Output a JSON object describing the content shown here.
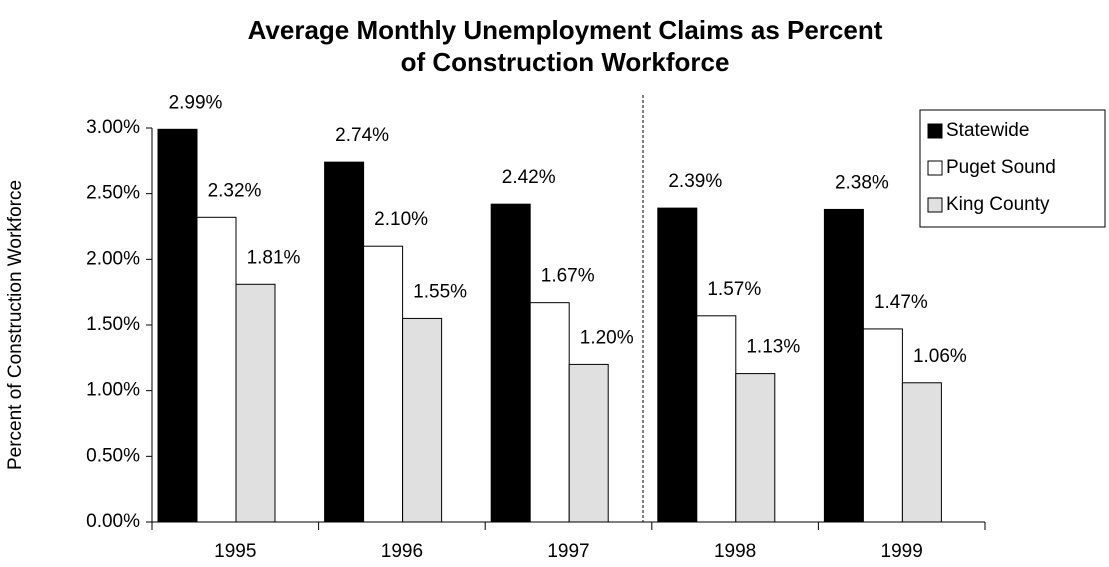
{
  "chart_data": {
    "type": "bar",
    "title": [
      "Average Monthly Unemployment Claims as Percent",
      "of Construction Workforce"
    ],
    "ylabel": "Percent of Construction Workforce",
    "categories": [
      "1995",
      "1996",
      "1997",
      "1998",
      "1999"
    ],
    "series": [
      {
        "name": "Statewide",
        "color": "#000000",
        "values": [
          2.99,
          2.74,
          2.42,
          2.39,
          2.38
        ],
        "value_labels": [
          "2.99%",
          "2.74%",
          "2.42%",
          "2.39%",
          "2.38%"
        ]
      },
      {
        "name": "Puget Sound",
        "color": "#ffffff",
        "values": [
          2.32,
          2.1,
          1.67,
          1.57,
          1.47
        ],
        "value_labels": [
          "2.32%",
          "2.10%",
          "1.67%",
          "1.57%",
          "1.47%"
        ]
      },
      {
        "name": "King County",
        "color": "#e0e0e0",
        "values": [
          1.81,
          1.55,
          1.2,
          1.13,
          1.06
        ],
        "value_labels": [
          "1.81%",
          "1.55%",
          "1.20%",
          "1.13%",
          "1.06%"
        ]
      }
    ],
    "ylim": [
      0,
      3
    ],
    "yticks": [
      {
        "value": 0,
        "label": "0.00%"
      },
      {
        "value": 0.5,
        "label": "0.50%"
      },
      {
        "value": 1,
        "label": "1.00%"
      },
      {
        "value": 1.5,
        "label": "1.50%"
      },
      {
        "value": 2,
        "label": "2.00%"
      },
      {
        "value": 2.5,
        "label": "2.50%"
      },
      {
        "value": 3,
        "label": "3.00%"
      }
    ],
    "grid": false,
    "legend": "upper right"
  }
}
